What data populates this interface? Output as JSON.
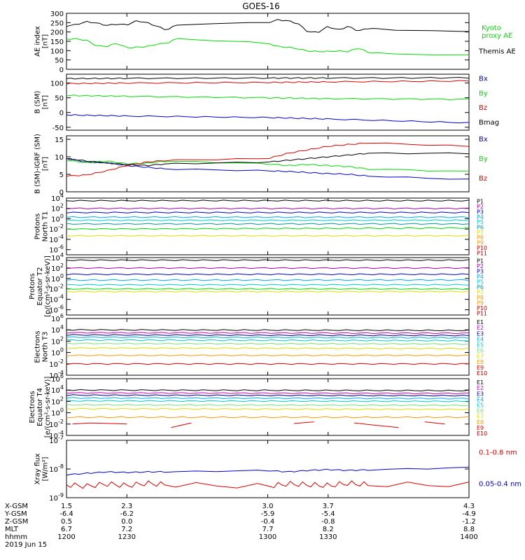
{
  "title": "GOES-16",
  "colors": {
    "black": "#000000",
    "green": "#00dd00",
    "blue": "#0000cc",
    "red": "#dd0000",
    "cyan": "#00cccc",
    "yellow": "#dddd00",
    "orange": "#ff9900",
    "navy": "#000088",
    "purple": "#7700aa",
    "lightgreen": "#77dd77",
    "teal": "#009999",
    "violet": "#aa00aa",
    "darkred": "#aa0000",
    "magenta": "#cc00cc",
    "skyblue": "#00aaee"
  },
  "chart_data": [
    {
      "id": "ae",
      "type": "line",
      "ylabel_lines": [
        "AE index",
        "[nT]"
      ],
      "ylim": [
        0,
        300
      ],
      "yticks": [
        "0",
        "50",
        "100",
        "150",
        "200",
        "250",
        "300"
      ],
      "x": [
        1200,
        1205,
        1210,
        1215,
        1220,
        1225,
        1230,
        1235,
        1240,
        1245,
        1250,
        1255,
        1300,
        1305,
        1310,
        1315,
        1320,
        1325,
        1330,
        1335,
        1340,
        1345,
        1350,
        1355,
        1400
      ],
      "series": [
        {
          "name": "Kyoto proxy AE",
          "color": "green",
          "legend_lines": [
            "Kyoto",
            "proxy AE"
          ],
          "legend_at": 0.3,
          "values": [
            162,
            163,
            155,
            125,
            123,
            140,
            115,
            118,
            122,
            135,
            140,
            165,
            140,
            122,
            118,
            110,
            98,
            95,
            96,
            98,
            95,
            115,
            90,
            85,
            75
          ]
        },
        {
          "name": "Themis AE",
          "color": "black",
          "legend_lines": [
            "Themis AE"
          ],
          "legend_at": 0.72,
          "values": [
            232,
            240,
            255,
            248,
            235,
            242,
            238,
            260,
            250,
            230,
            210,
            240,
            250,
            265,
            260,
            245,
            200,
            198,
            230,
            210,
            230,
            205,
            220,
            215,
            200
          ]
        }
      ]
    },
    {
      "id": "bsm",
      "type": "line",
      "ylabel_lines": [
        "B (SM)",
        "[nT]"
      ],
      "ylim": [
        -60,
        130
      ],
      "yticks": [
        "-50",
        "0",
        "50",
        "100"
      ],
      "ytick_values": [
        -50,
        0,
        50,
        100
      ],
      "x": [
        1200,
        1230,
        1300,
        1330,
        1400
      ],
      "series": [
        {
          "name": "Bx",
          "color": "blue",
          "legend_lines": [
            "Bx"
          ],
          "legend_at": 0.12,
          "values": [
            -8,
            -12,
            -17,
            -22,
            -35
          ]
        },
        {
          "name": "By",
          "color": "green",
          "legend_lines": [
            "By"
          ],
          "legend_at": 0.38,
          "values": [
            58,
            55,
            50,
            47,
            45
          ]
        },
        {
          "name": "Bz",
          "color": "red",
          "legend_lines": [
            "Bz"
          ],
          "legend_at": 0.64,
          "values": [
            98,
            100,
            102,
            104,
            107
          ]
        },
        {
          "name": "Bmag",
          "color": "black",
          "legend_lines": [
            "Bmag"
          ],
          "legend_at": 0.9,
          "values": [
            115,
            116,
            117,
            117,
            118
          ]
        }
      ]
    },
    {
      "id": "bigrf",
      "type": "line",
      "ylabel_lines": [
        "B (SM)-IGRF (SM)",
        "[nT]"
      ],
      "ylim": [
        0,
        16
      ],
      "yticks": [
        "0",
        "5",
        "10",
        "15"
      ],
      "ytick_values": [
        0,
        5,
        10,
        15
      ],
      "x": [
        1200,
        1210,
        1220,
        1230,
        1240,
        1250,
        1300,
        1310,
        1320,
        1330,
        1340,
        1350,
        1400
      ],
      "series": [
        {
          "name": "Bx",
          "color": "blue",
          "legend_lines": [
            "Bx"
          ],
          "legend_at": 0.1,
          "values": [
            9.5,
            8.5,
            8.3,
            7.5,
            7.0,
            6.5,
            6.0,
            5.8,
            5.5,
            5.2,
            5.0,
            4.5,
            3.5
          ]
        },
        {
          "name": "By",
          "color": "green",
          "legend_lines": [
            "By"
          ],
          "legend_at": 0.45,
          "values": [
            9,
            8.3,
            8.8,
            8.0,
            8.2,
            8.8,
            8.0,
            7.5,
            7.8,
            7.5,
            7.2,
            6.5,
            5.8
          ]
        },
        {
          "name": "Bz",
          "color": "red",
          "legend_lines": [
            "Bz"
          ],
          "legend_at": 0.8,
          "values": [
            4.5,
            4.8,
            6.0,
            7.5,
            8.5,
            9.0,
            9.5,
            11,
            12,
            13,
            13.5,
            14,
            13
          ]
        },
        {
          "name": "Bmag",
          "color": "black",
          "legend_lines": [],
          "values": [
            9.5,
            8.8,
            8.2,
            7.8,
            7.5,
            8.0,
            8.5,
            9.0,
            9.5,
            10,
            10.5,
            11,
            11
          ]
        }
      ]
    },
    {
      "id": "p_north",
      "type": "line",
      "log": true,
      "ylabel_lines": [
        "Protons",
        "North T1"
      ],
      "ylim_exp": [
        -7,
        4
      ],
      "yticks": [
        {
          "base": "10",
          "exp": "4",
          "e": 4
        },
        {
          "base": "10",
          "exp": "2",
          "e": 2
        },
        {
          "base": "10",
          "exp": "0",
          "e": 0
        },
        {
          "base": "10",
          "exp": "-2",
          "e": -2
        },
        {
          "base": "10",
          "exp": "-4",
          "e": -4
        },
        {
          "base": "10",
          "exp": "-6",
          "e": -6
        }
      ],
      "legend": [
        "P1",
        "P2",
        "P3",
        "P4",
        "P5",
        "P6",
        "P7",
        "P8",
        "P9",
        "P10",
        "P11"
      ],
      "legend_colors": [
        "black",
        "violet",
        "blue",
        "skyblue",
        "cyan",
        "teal",
        "yellow",
        "orange",
        "orange",
        "red",
        "darkred"
      ],
      "x": [
        1200,
        1400
      ],
      "series": [
        {
          "name": "P1",
          "color": "black",
          "values": [
            3.5,
            3.5
          ]
        },
        {
          "name": "P2",
          "color": "violet",
          "values": [
            2.0,
            2.0
          ]
        },
        {
          "name": "P3",
          "color": "blue",
          "values": [
            1.2,
            1.2
          ]
        },
        {
          "name": "P4",
          "color": "skyblue",
          "values": [
            0.3,
            0.3
          ]
        },
        {
          "name": "P5",
          "color": "cyan",
          "values": [
            -0.3,
            -0.3
          ]
        },
        {
          "name": "P6",
          "color": "teal",
          "values": [
            -1.0,
            -1.0
          ]
        },
        {
          "name": "P7",
          "color": "green",
          "values": [
            -2.0,
            -1.8
          ]
        },
        {
          "name": "P8",
          "color": "yellow",
          "values": [
            -3.3,
            -3.3
          ]
        }
      ]
    },
    {
      "id": "p_equator",
      "type": "line",
      "log": true,
      "ylabel_lines": [
        "Protons",
        "Equator T2",
        "[p/(cm²-s-sr-keV)]"
      ],
      "ylim_exp": [
        -7,
        4
      ],
      "yticks": [
        {
          "base": "10",
          "exp": "4",
          "e": 4
        },
        {
          "base": "10",
          "exp": "2",
          "e": 2
        },
        {
          "base": "10",
          "exp": "0",
          "e": 0
        },
        {
          "base": "10",
          "exp": "-2",
          "e": -2
        },
        {
          "base": "10",
          "exp": "-4",
          "e": -4
        },
        {
          "base": "10",
          "exp": "-6",
          "e": -6
        }
      ],
      "legend": [
        "P1",
        "P2",
        "P3",
        "P4",
        "P5",
        "P6",
        "P7",
        "P8",
        "P9",
        "P10",
        "P11"
      ],
      "legend_colors": [
        "black",
        "violet",
        "blue",
        "skyblue",
        "cyan",
        "teal",
        "yellow",
        "orange",
        "orange",
        "red",
        "darkred"
      ],
      "x": [
        1200,
        1400
      ],
      "series": [
        {
          "name": "P1",
          "color": "black",
          "values": [
            3.5,
            3.5
          ]
        },
        {
          "name": "P2",
          "color": "violet",
          "values": [
            2.0,
            2.0
          ]
        },
        {
          "name": "P3",
          "color": "blue",
          "values": [
            0.8,
            0.8
          ]
        },
        {
          "name": "P4",
          "color": "skyblue",
          "values": [
            -0.3,
            -0.3
          ]
        },
        {
          "name": "P5",
          "color": "cyan",
          "values": [
            -1.2,
            -1.2
          ]
        },
        {
          "name": "P6",
          "color": "green",
          "values": [
            -2.0,
            -2.0
          ]
        },
        {
          "name": "P7",
          "color": "yellow",
          "values": [
            -2.5,
            -2.5
          ]
        }
      ]
    },
    {
      "id": "e_north",
      "type": "line",
      "log": true,
      "ylabel_lines": [
        "Electrons",
        "North T3"
      ],
      "ylim_exp": [
        -4,
        6
      ],
      "yticks": [
        {
          "base": "10",
          "exp": "6",
          "e": 6
        },
        {
          "base": "10",
          "exp": "4",
          "e": 4
        },
        {
          "base": "10",
          "exp": "2",
          "e": 2
        },
        {
          "base": "10",
          "exp": "0",
          "e": 0
        },
        {
          "base": "10",
          "exp": "-2",
          "e": -2
        },
        {
          "base": "10",
          "exp": "-4",
          "e": -4
        }
      ],
      "legend": [
        "E1",
        "E2",
        "E3",
        "E4",
        "E5",
        "E6",
        "E7",
        "E8",
        "E9",
        "E10"
      ],
      "legend_colors": [
        "black",
        "magenta",
        "navy",
        "skyblue",
        "cyan",
        "lightgreen",
        "yellow",
        "orange",
        "red",
        "darkred"
      ],
      "x": [
        1200,
        1400
      ],
      "series": [
        {
          "name": "E1",
          "color": "black",
          "values": [
            4.0,
            3.9
          ]
        },
        {
          "name": "E2",
          "color": "magenta",
          "values": [
            3.5,
            3.4
          ]
        },
        {
          "name": "E3",
          "color": "navy",
          "values": [
            3.1,
            3.0
          ]
        },
        {
          "name": "E4",
          "color": "skyblue",
          "values": [
            2.7,
            2.6
          ]
        },
        {
          "name": "E5",
          "color": "cyan",
          "values": [
            2.2,
            2.1
          ]
        },
        {
          "name": "E6",
          "color": "lightgreen",
          "values": [
            1.6,
            1.5
          ]
        },
        {
          "name": "E7",
          "color": "yellow",
          "values": [
            0.8,
            0.7
          ]
        },
        {
          "name": "E8",
          "color": "orange",
          "values": [
            -0.5,
            -0.5
          ]
        },
        {
          "name": "E9",
          "color": "red",
          "values": [
            -2.0,
            -2.0
          ]
        }
      ]
    },
    {
      "id": "e_equator",
      "type": "line",
      "log": true,
      "ylabel_lines": [
        "Electrons",
        "Equator T4",
        "[e/(cm²-s-sr-keV)]"
      ],
      "ylim_exp": [
        -4,
        6
      ],
      "yticks": [
        {
          "base": "10",
          "exp": "6",
          "e": 6
        },
        {
          "base": "10",
          "exp": "4",
          "e": 4
        },
        {
          "base": "10",
          "exp": "2",
          "e": 2
        },
        {
          "base": "10",
          "exp": "0",
          "e": 0
        },
        {
          "base": "10",
          "exp": "-2",
          "e": -2
        },
        {
          "base": "10",
          "exp": "-4",
          "e": -4
        }
      ],
      "legend": [
        "E1",
        "E2",
        "E3",
        "E4",
        "E5",
        "E6",
        "E7",
        "E8",
        "E9",
        "E10"
      ],
      "legend_colors": [
        "black",
        "magenta",
        "navy",
        "skyblue",
        "cyan",
        "lightgreen",
        "yellow",
        "orange",
        "red",
        "darkred"
      ],
      "x": [
        1200,
        1400
      ],
      "series": [
        {
          "name": "E1",
          "color": "black",
          "values": [
            4.0,
            3.9
          ]
        },
        {
          "name": "E2",
          "color": "magenta",
          "values": [
            3.5,
            3.4
          ]
        },
        {
          "name": "E3",
          "color": "navy",
          "values": [
            3.1,
            3.0
          ]
        },
        {
          "name": "E4",
          "color": "skyblue",
          "values": [
            2.6,
            2.5
          ]
        },
        {
          "name": "E5",
          "color": "cyan",
          "values": [
            2.1,
            2.0
          ]
        },
        {
          "name": "E6",
          "color": "lightgreen",
          "values": [
            1.4,
            1.3
          ]
        },
        {
          "name": "E7",
          "color": "yellow",
          "values": [
            0.7,
            0.6
          ]
        },
        {
          "name": "E8",
          "color": "orange",
          "values": [
            -0.8,
            -0.8
          ]
        }
      ],
      "segments": [
        {
          "name": "E9",
          "color": "red",
          "points": [
            [
              1203,
              -2.0
            ],
            [
              1212,
              -1.8
            ],
            [
              1222,
              -1.9
            ],
            [
              1230,
              -2.0
            ]
          ]
        },
        {
          "name": "E9",
          "color": "red",
          "points": [
            [
              1252,
              -2.6
            ],
            [
              1262,
              -1.8
            ]
          ]
        },
        {
          "name": "E9",
          "color": "red",
          "points": [
            [
              1313,
              -1.9
            ],
            [
              1323,
              -1.6
            ]
          ]
        },
        {
          "name": "E9",
          "color": "red",
          "points": [
            [
              1343,
              -1.8
            ],
            [
              1353,
              -2.2
            ],
            [
              1365,
              -2.6
            ]
          ]
        },
        {
          "name": "E9",
          "color": "red",
          "points": [
            [
              1378,
              -1.6
            ],
            [
              1388,
              -2.0
            ]
          ]
        }
      ]
    },
    {
      "id": "xray",
      "type": "line",
      "log": true,
      "ylabel_lines": [
        "Xray flux",
        "[W/m²]"
      ],
      "ylim_exp": [
        -9,
        -7
      ],
      "yticks": [
        {
          "base": "10",
          "exp": "-7",
          "e": -7
        },
        {
          "base": "10",
          "exp": "-8",
          "e": -8
        },
        {
          "base": "10",
          "exp": "-9",
          "e": -9
        }
      ],
      "x": [
        1200,
        1210,
        1220,
        1230,
        1240,
        1250,
        1300,
        1310,
        1320,
        1330,
        1340,
        1350,
        1400
      ],
      "series": [
        {
          "name": "0.1-0.8 nm",
          "color": "red",
          "legend_lines": [
            "0.1-0.8 nm"
          ],
          "legend_at": 0.25,
          "values": [
            -8.55,
            -8.6,
            -8.52,
            -8.58,
            -8.5,
            -8.55,
            -8.6,
            -8.52,
            -8.55,
            -8.58,
            -8.5,
            -8.55,
            -8.55
          ]
        },
        {
          "name": "0.05-0.4 nm",
          "color": "blue",
          "legend_lines": [
            "0.05-0.4 nm"
          ],
          "legend_at": 0.8,
          "values": [
            -8.2,
            -8.15,
            -8.1,
            -8.12,
            -8.1,
            -8.1,
            -8.05,
            -8.1,
            -8.05,
            -8.02,
            -8.05,
            -8.03,
            -7.95
          ]
        }
      ]
    }
  ],
  "xaxis": {
    "tick_values": [
      1200,
      1230,
      1300,
      1330,
      1400
    ],
    "rows": [
      {
        "label": "X-GSM",
        "values": [
          "1.5",
          "2.3",
          "3.0",
          "3.7",
          "4.3"
        ]
      },
      {
        "label": "Y-GSM",
        "values": [
          "-6.4",
          "-6.2",
          "-5.9",
          "-5.4",
          "-4.9"
        ]
      },
      {
        "label": "Z-GSM",
        "values": [
          "0.5",
          "0.0",
          "-0.4",
          "-0.8",
          "-1.2"
        ]
      },
      {
        "label": "MLT",
        "values": [
          "6.7",
          "7.2",
          "7.7",
          "8.2",
          "8.8"
        ]
      },
      {
        "label": "hhmm",
        "values": [
          "1200",
          "1230",
          "1300",
          "1330",
          "1400"
        ]
      }
    ],
    "date": "2019 Jun 15"
  }
}
